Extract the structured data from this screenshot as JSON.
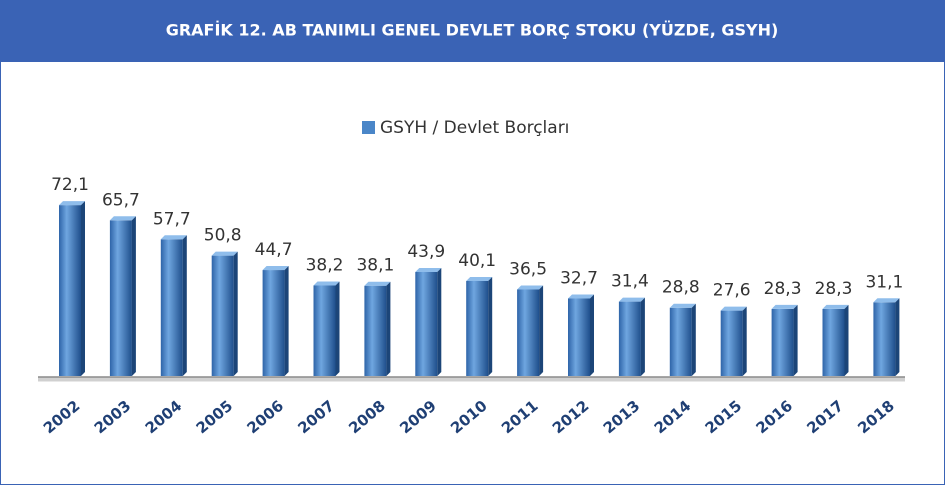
{
  "chart_data": {
    "type": "bar",
    "title": "GRAFİK 12. AB TANIMLI GENEL DEVLET BORÇ STOKU (YÜZDE, GSYH)",
    "categories": [
      "2002",
      "2003",
      "2004",
      "2005",
      "2006",
      "2007",
      "2008",
      "2009",
      "2010",
      "2011",
      "2012",
      "2013",
      "2014",
      "2015",
      "2016",
      "2017",
      "2018"
    ],
    "series": [
      {
        "name": "GSYH / Devlet Borçları",
        "color": "#4a86c8",
        "values": [
          72.1,
          65.7,
          57.7,
          50.8,
          44.7,
          38.2,
          38.1,
          43.9,
          40.1,
          36.5,
          32.7,
          31.4,
          28.8,
          27.6,
          28.3,
          28.3,
          31.1
        ],
        "value_labels": [
          "72,1",
          "65,7",
          "57,7",
          "50,8",
          "44,7",
          "38,2",
          "38,1",
          "43,9",
          "40,1",
          "36,5",
          "32,7",
          "31,4",
          "28,8",
          "27,6",
          "28,3",
          "28,3",
          "31,1"
        ]
      }
    ],
    "legend": "top"
  }
}
